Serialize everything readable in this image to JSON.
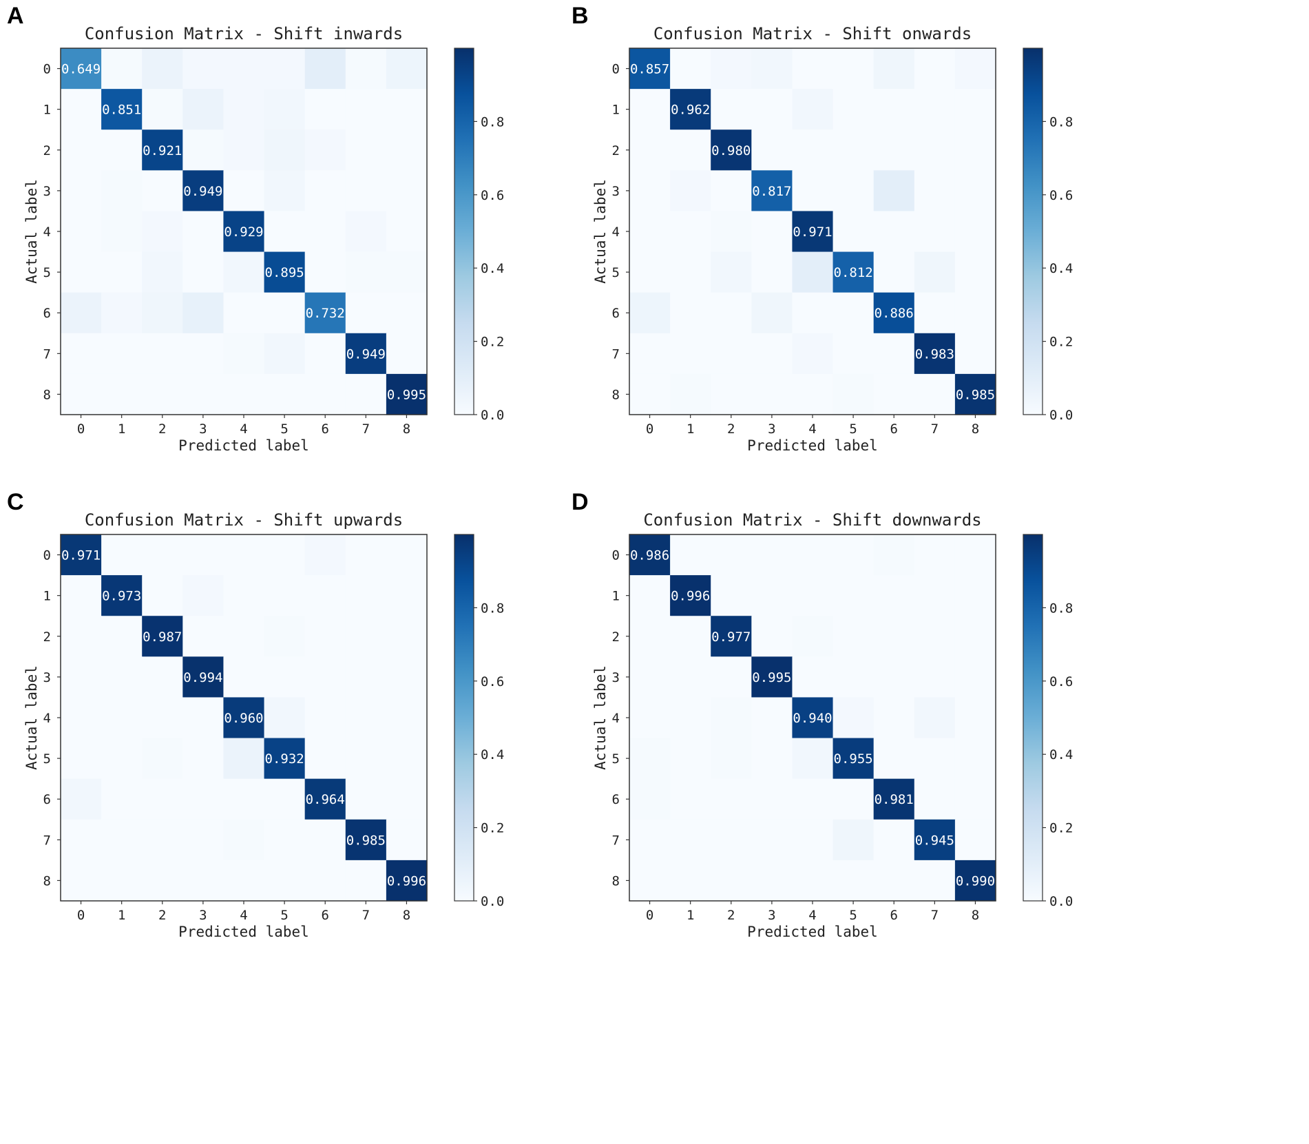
{
  "figure": {
    "colormap": {
      "name": "Blues",
      "low": "#f7fbff",
      "high": "#08306b"
    },
    "text_colors": {
      "on_light": "#000000",
      "on_dark": "#ffffff"
    }
  },
  "chart_data": [
    {
      "type": "heatmap",
      "panel": "A",
      "title": "Confusion Matrix - Shift inwards",
      "xlabel": "Predicted label",
      "ylabel": "Actual label",
      "x_ticks": [
        "0",
        "1",
        "2",
        "3",
        "4",
        "5",
        "6",
        "7",
        "8"
      ],
      "y_ticks": [
        "0",
        "1",
        "2",
        "3",
        "4",
        "5",
        "6",
        "7",
        "8"
      ],
      "colorbar": {
        "range": [
          0,
          1
        ],
        "ticks": [
          "0.0",
          "0.2",
          "0.4",
          "0.6",
          "0.8"
        ]
      },
      "diagonal_labels": [
        "0.649",
        "0.851",
        "0.921",
        "0.949",
        "0.929",
        "0.895",
        "0.732",
        "0.949",
        "0.995"
      ],
      "matrix": [
        [
          0.649,
          0.01,
          0.06,
          0.02,
          0.02,
          0.02,
          0.1,
          0.01,
          0.05
        ],
        [
          0.0,
          0.851,
          0.01,
          0.06,
          0.02,
          0.03,
          0.0,
          0.0,
          0.0
        ],
        [
          0.0,
          0.0,
          0.921,
          0.01,
          0.02,
          0.04,
          0.02,
          0.0,
          0.0
        ],
        [
          0.0,
          0.01,
          0.0,
          0.949,
          0.0,
          0.03,
          0.0,
          0.0,
          0.0
        ],
        [
          0.0,
          0.01,
          0.02,
          0.0,
          0.929,
          0.0,
          0.0,
          0.02,
          0.0
        ],
        [
          0.0,
          0.0,
          0.03,
          0.0,
          0.03,
          0.895,
          0.0,
          0.01,
          0.01
        ],
        [
          0.06,
          0.02,
          0.04,
          0.08,
          0.0,
          0.0,
          0.732,
          0.0,
          0.0
        ],
        [
          0.0,
          0.0,
          0.0,
          0.0,
          0.01,
          0.03,
          0.0,
          0.949,
          0.0
        ],
        [
          0.0,
          0.0,
          0.0,
          0.0,
          0.0,
          0.0,
          0.0,
          0.0,
          0.995
        ]
      ]
    },
    {
      "type": "heatmap",
      "panel": "B",
      "title": "Confusion Matrix - Shift onwards",
      "xlabel": "Predicted label",
      "ylabel": "Actual label",
      "x_ticks": [
        "0",
        "1",
        "2",
        "3",
        "4",
        "5",
        "6",
        "7",
        "8"
      ],
      "y_ticks": [
        "0",
        "1",
        "2",
        "3",
        "4",
        "5",
        "6",
        "7",
        "8"
      ],
      "colorbar": {
        "range": [
          0,
          1
        ],
        "ticks": [
          "0.0",
          "0.2",
          "0.4",
          "0.6",
          "0.8"
        ]
      },
      "diagonal_labels": [
        "0.857",
        "0.962",
        "0.980",
        "0.817",
        "0.971",
        "0.812",
        "0.886",
        "0.983",
        "0.985"
      ],
      "matrix": [
        [
          0.857,
          0.0,
          0.02,
          0.03,
          0.0,
          0.0,
          0.04,
          0.0,
          0.02
        ],
        [
          0.0,
          0.962,
          0.0,
          0.0,
          0.03,
          0.0,
          0.0,
          0.0,
          0.0
        ],
        [
          0.0,
          0.0,
          0.98,
          0.0,
          0.0,
          0.0,
          0.0,
          0.0,
          0.0
        ],
        [
          0.0,
          0.02,
          0.0,
          0.817,
          0.0,
          0.0,
          0.1,
          0.0,
          0.0
        ],
        [
          0.0,
          0.0,
          0.01,
          0.0,
          0.971,
          0.0,
          0.0,
          0.0,
          0.0
        ],
        [
          0.0,
          0.0,
          0.03,
          0.0,
          0.1,
          0.812,
          0.0,
          0.04,
          0.0
        ],
        [
          0.05,
          0.0,
          0.0,
          0.04,
          0.0,
          0.0,
          0.886,
          0.0,
          0.0
        ],
        [
          0.0,
          0.0,
          0.0,
          0.0,
          0.02,
          0.0,
          0.0,
          0.983,
          0.0
        ],
        [
          0.0,
          0.01,
          0.0,
          0.0,
          0.0,
          0.01,
          0.0,
          0.0,
          0.985
        ]
      ]
    },
    {
      "type": "heatmap",
      "panel": "C",
      "title": "Confusion Matrix - Shift upwards",
      "xlabel": "Predicted label",
      "ylabel": "Actual label",
      "x_ticks": [
        "0",
        "1",
        "2",
        "3",
        "4",
        "5",
        "6",
        "7",
        "8"
      ],
      "y_ticks": [
        "0",
        "1",
        "2",
        "3",
        "4",
        "5",
        "6",
        "7",
        "8"
      ],
      "colorbar": {
        "range": [
          0,
          1
        ],
        "ticks": [
          "0.0",
          "0.2",
          "0.4",
          "0.6",
          "0.8"
        ]
      },
      "diagonal_labels": [
        "0.971",
        "0.973",
        "0.987",
        "0.994",
        "0.960",
        "0.932",
        "0.964",
        "0.985",
        "0.996"
      ],
      "matrix": [
        [
          0.971,
          0.0,
          0.0,
          0.0,
          0.0,
          0.0,
          0.02,
          0.0,
          0.0
        ],
        [
          0.0,
          0.973,
          0.0,
          0.02,
          0.0,
          0.0,
          0.0,
          0.0,
          0.0
        ],
        [
          0.0,
          0.0,
          0.987,
          0.0,
          0.0,
          0.01,
          0.0,
          0.0,
          0.0
        ],
        [
          0.0,
          0.0,
          0.0,
          0.994,
          0.0,
          0.0,
          0.0,
          0.0,
          0.0
        ],
        [
          0.0,
          0.0,
          0.0,
          0.0,
          0.96,
          0.03,
          0.0,
          0.0,
          0.0
        ],
        [
          0.0,
          0.0,
          0.01,
          0.0,
          0.06,
          0.932,
          0.0,
          0.0,
          0.0
        ],
        [
          0.03,
          0.0,
          0.0,
          0.0,
          0.0,
          0.0,
          0.964,
          0.0,
          0.0
        ],
        [
          0.0,
          0.0,
          0.0,
          0.0,
          0.01,
          0.0,
          0.0,
          0.985,
          0.0
        ],
        [
          0.0,
          0.0,
          0.0,
          0.0,
          0.0,
          0.0,
          0.0,
          0.0,
          0.996
        ]
      ]
    },
    {
      "type": "heatmap",
      "panel": "D",
      "title": "Confusion Matrix - Shift downwards",
      "xlabel": "Predicted label",
      "ylabel": "Actual label",
      "x_ticks": [
        "0",
        "1",
        "2",
        "3",
        "4",
        "5",
        "6",
        "7",
        "8"
      ],
      "y_ticks": [
        "0",
        "1",
        "2",
        "3",
        "4",
        "5",
        "6",
        "7",
        "8"
      ],
      "colorbar": {
        "range": [
          0,
          1
        ],
        "ticks": [
          "0.0",
          "0.2",
          "0.4",
          "0.6",
          "0.8"
        ]
      },
      "diagonal_labels": [
        "0.986",
        "0.996",
        "0.977",
        "0.995",
        "0.940",
        "0.955",
        "0.981",
        "0.945",
        "0.990"
      ],
      "matrix": [
        [
          0.986,
          0.0,
          0.0,
          0.0,
          0.0,
          0.0,
          0.01,
          0.0,
          0.0
        ],
        [
          0.0,
          0.996,
          0.0,
          0.0,
          0.0,
          0.0,
          0.0,
          0.0,
          0.0
        ],
        [
          0.0,
          0.0,
          0.977,
          0.0,
          0.01,
          0.0,
          0.0,
          0.0,
          0.0
        ],
        [
          0.0,
          0.0,
          0.0,
          0.995,
          0.0,
          0.0,
          0.0,
          0.0,
          0.0
        ],
        [
          0.0,
          0.0,
          0.01,
          0.0,
          0.94,
          0.02,
          0.0,
          0.03,
          0.0
        ],
        [
          0.01,
          0.0,
          0.01,
          0.0,
          0.03,
          0.955,
          0.0,
          0.0,
          0.0
        ],
        [
          0.01,
          0.0,
          0.0,
          0.0,
          0.0,
          0.0,
          0.981,
          0.0,
          0.0
        ],
        [
          0.0,
          0.0,
          0.0,
          0.0,
          0.0,
          0.04,
          0.0,
          0.945,
          0.0
        ],
        [
          0.0,
          0.0,
          0.0,
          0.0,
          0.0,
          0.0,
          0.0,
          0.0,
          0.99
        ]
      ]
    }
  ]
}
